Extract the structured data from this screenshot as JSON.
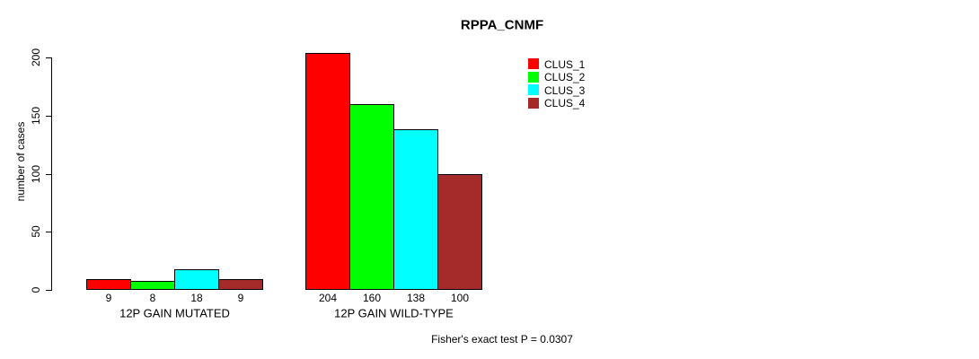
{
  "chart_data": {
    "type": "bar",
    "title": "RPPA_CNMF",
    "xlabel": "",
    "ylabel": "number of cases",
    "ylim": [
      0,
      200
    ],
    "yticks": [
      0,
      50,
      100,
      150,
      200
    ],
    "categories": [
      "12P GAIN MUTATED",
      "12P GAIN WILD-TYPE"
    ],
    "series": [
      {
        "name": "CLUS_1",
        "color": "#ff0000",
        "values": [
          9,
          204
        ]
      },
      {
        "name": "CLUS_2",
        "color": "#00ff00",
        "values": [
          8,
          160
        ]
      },
      {
        "name": "CLUS_3",
        "color": "#00ffff",
        "values": [
          18,
          138
        ]
      },
      {
        "name": "CLUS_4",
        "color": "#a52a2a",
        "values": [
          9,
          100
        ]
      }
    ],
    "bar_value_labels": [
      [
        9,
        8,
        18,
        9
      ],
      [
        204,
        160,
        138,
        100
      ]
    ],
    "legend_position": "top-right",
    "grid": false,
    "annotation": "Fisher's exact test P = 0.0307"
  }
}
